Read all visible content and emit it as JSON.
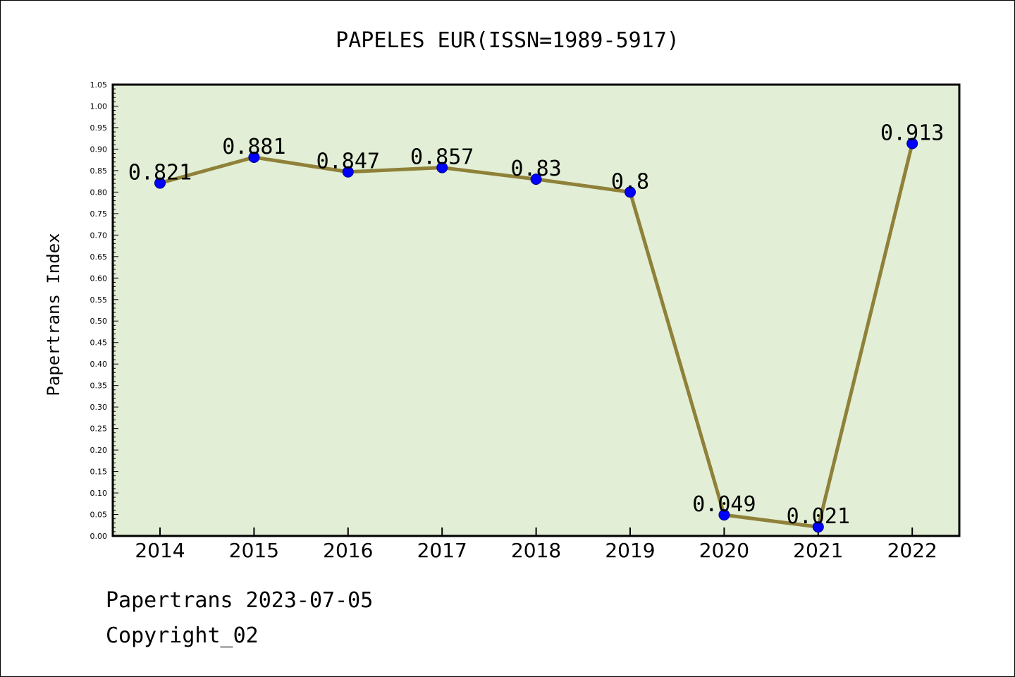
{
  "chart_data": {
    "type": "line",
    "title": "PAPELES EUR(ISSN=1989-5917)",
    "xlabel": "",
    "ylabel": "Papertrans Index",
    "categories": [
      "2014",
      "2015",
      "2016",
      "2017",
      "2018",
      "2019",
      "2020",
      "2021",
      "2022"
    ],
    "series": [
      {
        "values": [
          0.821,
          0.881,
          0.847,
          0.857,
          0.83,
          0.8,
          0.049,
          0.021,
          0.913
        ],
        "data_labels": [
          "0.821",
          "0.881",
          "0.847",
          "0.857",
          "0.83",
          "0.8",
          "0.049",
          "0.021",
          "0.913"
        ]
      }
    ],
    "ylim": [
      0,
      1.05
    ],
    "yticks": [
      "0.00",
      "0.05",
      "0.10",
      "0.15",
      "0.20",
      "0.25",
      "0.30",
      "0.35",
      "0.40",
      "0.45",
      "0.50",
      "0.55",
      "0.60",
      "0.65",
      "0.70",
      "0.75",
      "0.80",
      "0.85",
      "0.90",
      "0.95",
      "1.00",
      "1.05"
    ],
    "grid": false,
    "colors": {
      "plot_background": "#e2efd6",
      "line": "#8f8139",
      "marker": "#0000ff"
    }
  },
  "footer": {
    "line1": "Papertrans 2023-07-05",
    "line2": "Copyright_02"
  }
}
